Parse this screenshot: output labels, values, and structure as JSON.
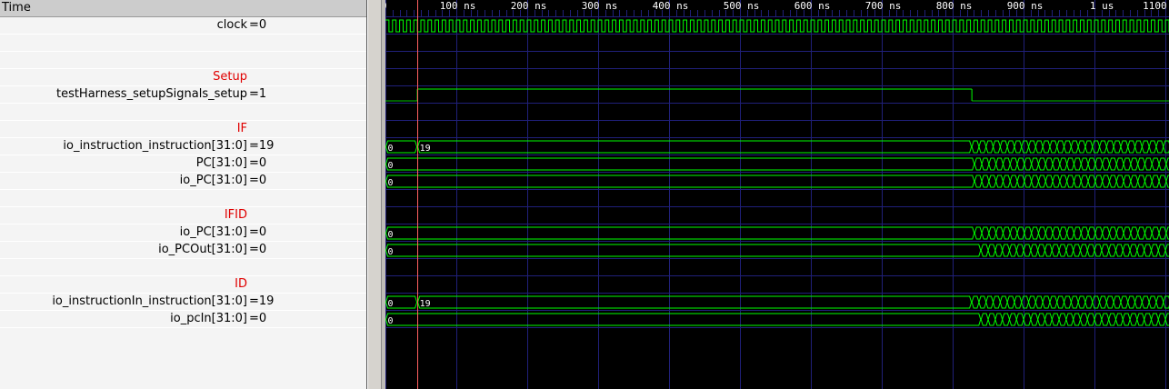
{
  "signal_panel": {
    "header": "Time",
    "rows": [
      {
        "name": "clock",
        "value": "=0",
        "kind": "signal"
      },
      {
        "name": "",
        "value": "",
        "kind": "blank"
      },
      {
        "name": "",
        "value": "",
        "kind": "blank"
      },
      {
        "name": "Setup",
        "value": "",
        "kind": "group"
      },
      {
        "name": "testHarness_setupSignals_setup",
        "value": "=1",
        "kind": "signal"
      },
      {
        "name": "",
        "value": "",
        "kind": "blank"
      },
      {
        "name": "IF",
        "value": "",
        "kind": "group"
      },
      {
        "name": "io_instruction_instruction[31:0]",
        "value": "=19",
        "kind": "signal"
      },
      {
        "name": "PC[31:0]",
        "value": "=0",
        "kind": "signal"
      },
      {
        "name": "io_PC[31:0]",
        "value": "=0",
        "kind": "signal"
      },
      {
        "name": "",
        "value": "",
        "kind": "blank"
      },
      {
        "name": "IFID",
        "value": "",
        "kind": "group"
      },
      {
        "name": "io_PC[31:0]",
        "value": "=0",
        "kind": "signal"
      },
      {
        "name": "io_PCOut[31:0]",
        "value": "=0",
        "kind": "signal"
      },
      {
        "name": "",
        "value": "",
        "kind": "blank"
      },
      {
        "name": "ID",
        "value": "",
        "kind": "group"
      },
      {
        "name": "io_instructionIn_instruction[31:0]",
        "value": "=19",
        "kind": "signal"
      },
      {
        "name": "io_pcIn[31:0]",
        "value": "=0",
        "kind": "signal"
      }
    ]
  },
  "timeline": {
    "unit": "ns",
    "visible_end_ns": 1105,
    "major_tick_ns": 100,
    "tick_labels": [
      "0",
      "100 ns",
      "200 ns",
      "300 ns",
      "400 ns",
      "500 ns",
      "600 ns",
      "700 ns",
      "800 ns",
      "900 ns",
      "1 us",
      "1100"
    ],
    "marker_ns": 45
  },
  "waves": [
    {
      "row": 0,
      "type": "clock",
      "period_ns": 10
    },
    {
      "row": 4,
      "type": "bit",
      "segments": [
        {
          "t": 0,
          "v": 0
        },
        {
          "t": 45,
          "v": 1
        },
        {
          "t": 827,
          "v": 0
        }
      ]
    },
    {
      "row": 7,
      "type": "bus",
      "segments": [
        {
          "t": 0,
          "v": "0"
        },
        {
          "t": 45,
          "v": "19"
        }
      ],
      "toggling_from_ns": 827
    },
    {
      "row": 8,
      "type": "bus",
      "segments": [
        {
          "t": 0,
          "v": "0"
        }
      ],
      "toggling_from_ns": 831
    },
    {
      "row": 9,
      "type": "bus",
      "segments": [
        {
          "t": 0,
          "v": "0"
        }
      ],
      "toggling_from_ns": 831
    },
    {
      "row": 12,
      "type": "bus",
      "segments": [
        {
          "t": 0,
          "v": "0"
        }
      ],
      "toggling_from_ns": 831
    },
    {
      "row": 13,
      "type": "bus",
      "segments": [
        {
          "t": 0,
          "v": "0"
        }
      ],
      "toggling_from_ns": 840
    },
    {
      "row": 16,
      "type": "bus",
      "segments": [
        {
          "t": 0,
          "v": "0"
        },
        {
          "t": 45,
          "v": "19"
        }
      ],
      "toggling_from_ns": 827
    },
    {
      "row": 17,
      "type": "bus",
      "segments": [
        {
          "t": 0,
          "v": "0"
        }
      ],
      "toggling_from_ns": 840
    }
  ],
  "colors": {
    "wave": "#00ff00",
    "wave_low": "#00c000",
    "grid": "#20207a",
    "marker": "#ff6060",
    "group_label": "#e00000",
    "background": "#000000"
  }
}
